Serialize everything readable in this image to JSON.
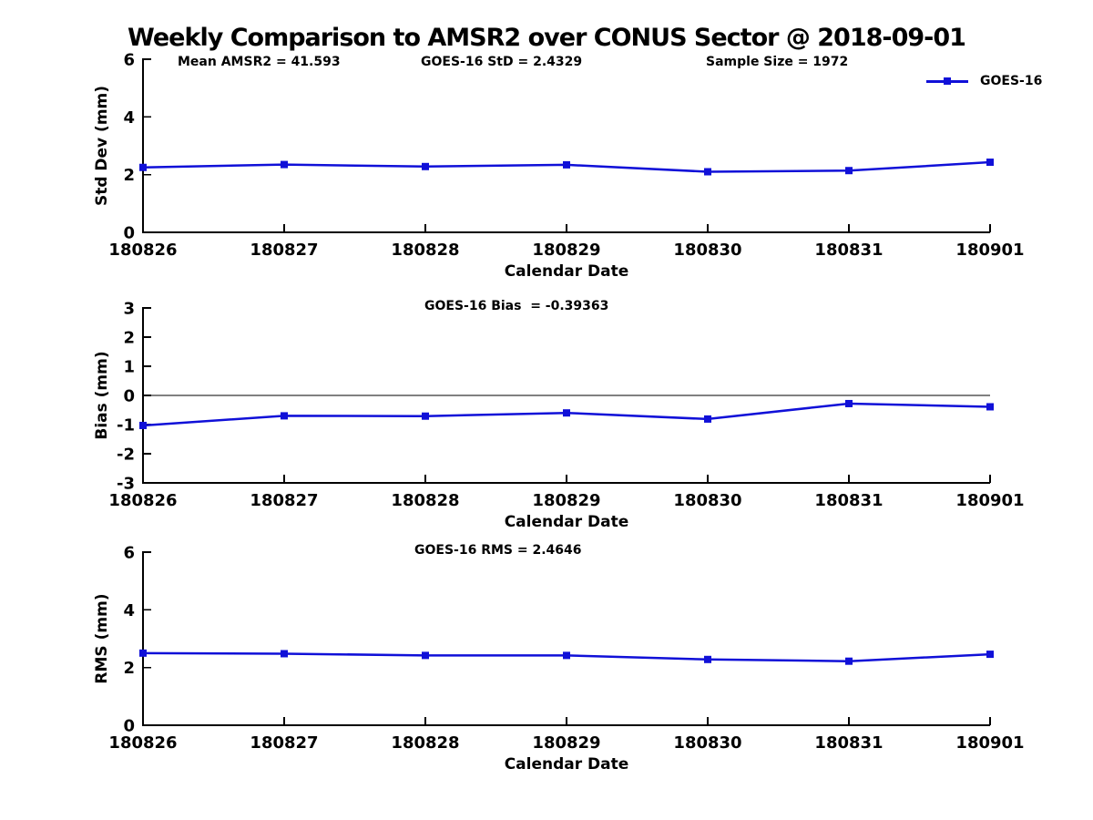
{
  "figure": {
    "title": "Weekly Comparison to AMSR2 over CONUS Sector @ 2018-09-01",
    "colors": {
      "series": "#1010d8",
      "axis": "#000000",
      "background": "#ffffff"
    },
    "legend": {
      "label": "GOES-16",
      "position": "top-right"
    }
  },
  "chart_data": [
    {
      "type": "line",
      "name": "std-dev",
      "x": [
        "180826",
        "180827",
        "180828",
        "180829",
        "180830",
        "180831",
        "180901"
      ],
      "series": [
        {
          "name": "GOES-16",
          "values": [
            2.25,
            2.35,
            2.28,
            2.34,
            2.1,
            2.14,
            2.43
          ]
        }
      ],
      "xlabel": "Calendar Date",
      "ylabel": "Std Dev (mm)",
      "ylim": [
        0,
        6
      ],
      "yticks": [
        0,
        2,
        4,
        6
      ],
      "zero_line": false,
      "grid": false,
      "marker": "square",
      "annotations": [
        "Mean AMSR2 = 41.593",
        "GOES-16 StD = 2.4329",
        "Sample Size = 1972"
      ]
    },
    {
      "type": "line",
      "name": "bias",
      "x": [
        "180826",
        "180827",
        "180828",
        "180829",
        "180830",
        "180831",
        "180901"
      ],
      "series": [
        {
          "name": "GOES-16",
          "values": [
            -1.03,
            -0.7,
            -0.71,
            -0.6,
            -0.81,
            -0.28,
            -0.39
          ]
        }
      ],
      "xlabel": "Calendar Date",
      "ylabel": "Bias (mm)",
      "ylim": [
        -3,
        3
      ],
      "yticks": [
        3,
        2,
        1,
        0,
        -1,
        -2,
        -3
      ],
      "zero_line": true,
      "grid": false,
      "marker": "square",
      "annotations": [
        "GOES-16 Bias  = -0.39363"
      ]
    },
    {
      "type": "line",
      "name": "rms",
      "x": [
        "180826",
        "180827",
        "180828",
        "180829",
        "180830",
        "180831",
        "180901"
      ],
      "series": [
        {
          "name": "GOES-16",
          "values": [
            2.5,
            2.48,
            2.42,
            2.42,
            2.28,
            2.22,
            2.46
          ]
        }
      ],
      "xlabel": "Calendar Date",
      "ylabel": "RMS (mm)",
      "ylim": [
        0,
        6
      ],
      "yticks": [
        0,
        2,
        4,
        6
      ],
      "zero_line": false,
      "grid": false,
      "marker": "square",
      "annotations": [
        "GOES-16 RMS = 2.4646"
      ]
    }
  ]
}
